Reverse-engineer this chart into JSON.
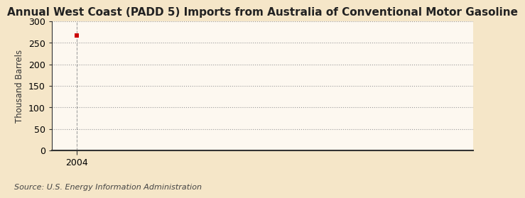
{
  "title": "Annual West Coast (PADD 5) Imports from Australia of Conventional Motor Gasoline",
  "ylabel": "Thousand Barrels",
  "source": "Source: U.S. Energy Information Administration",
  "background_color": "#f5e6c8",
  "plot_bg_color": "#fdf8f0",
  "data_x": [
    2004
  ],
  "data_y": [
    267
  ],
  "marker_color": "#cc0000",
  "marker_size": 4,
  "xlim": [
    2003.4,
    2013.5
  ],
  "ylim": [
    0,
    300
  ],
  "yticks": [
    0,
    50,
    100,
    150,
    200,
    250,
    300
  ],
  "xticks": [
    2004
  ],
  "xtick_labels": [
    "2004"
  ],
  "grid_color": "#999999",
  "spine_color": "#333333",
  "title_fontsize": 11,
  "label_fontsize": 8.5,
  "tick_fontsize": 9,
  "source_fontsize": 8
}
